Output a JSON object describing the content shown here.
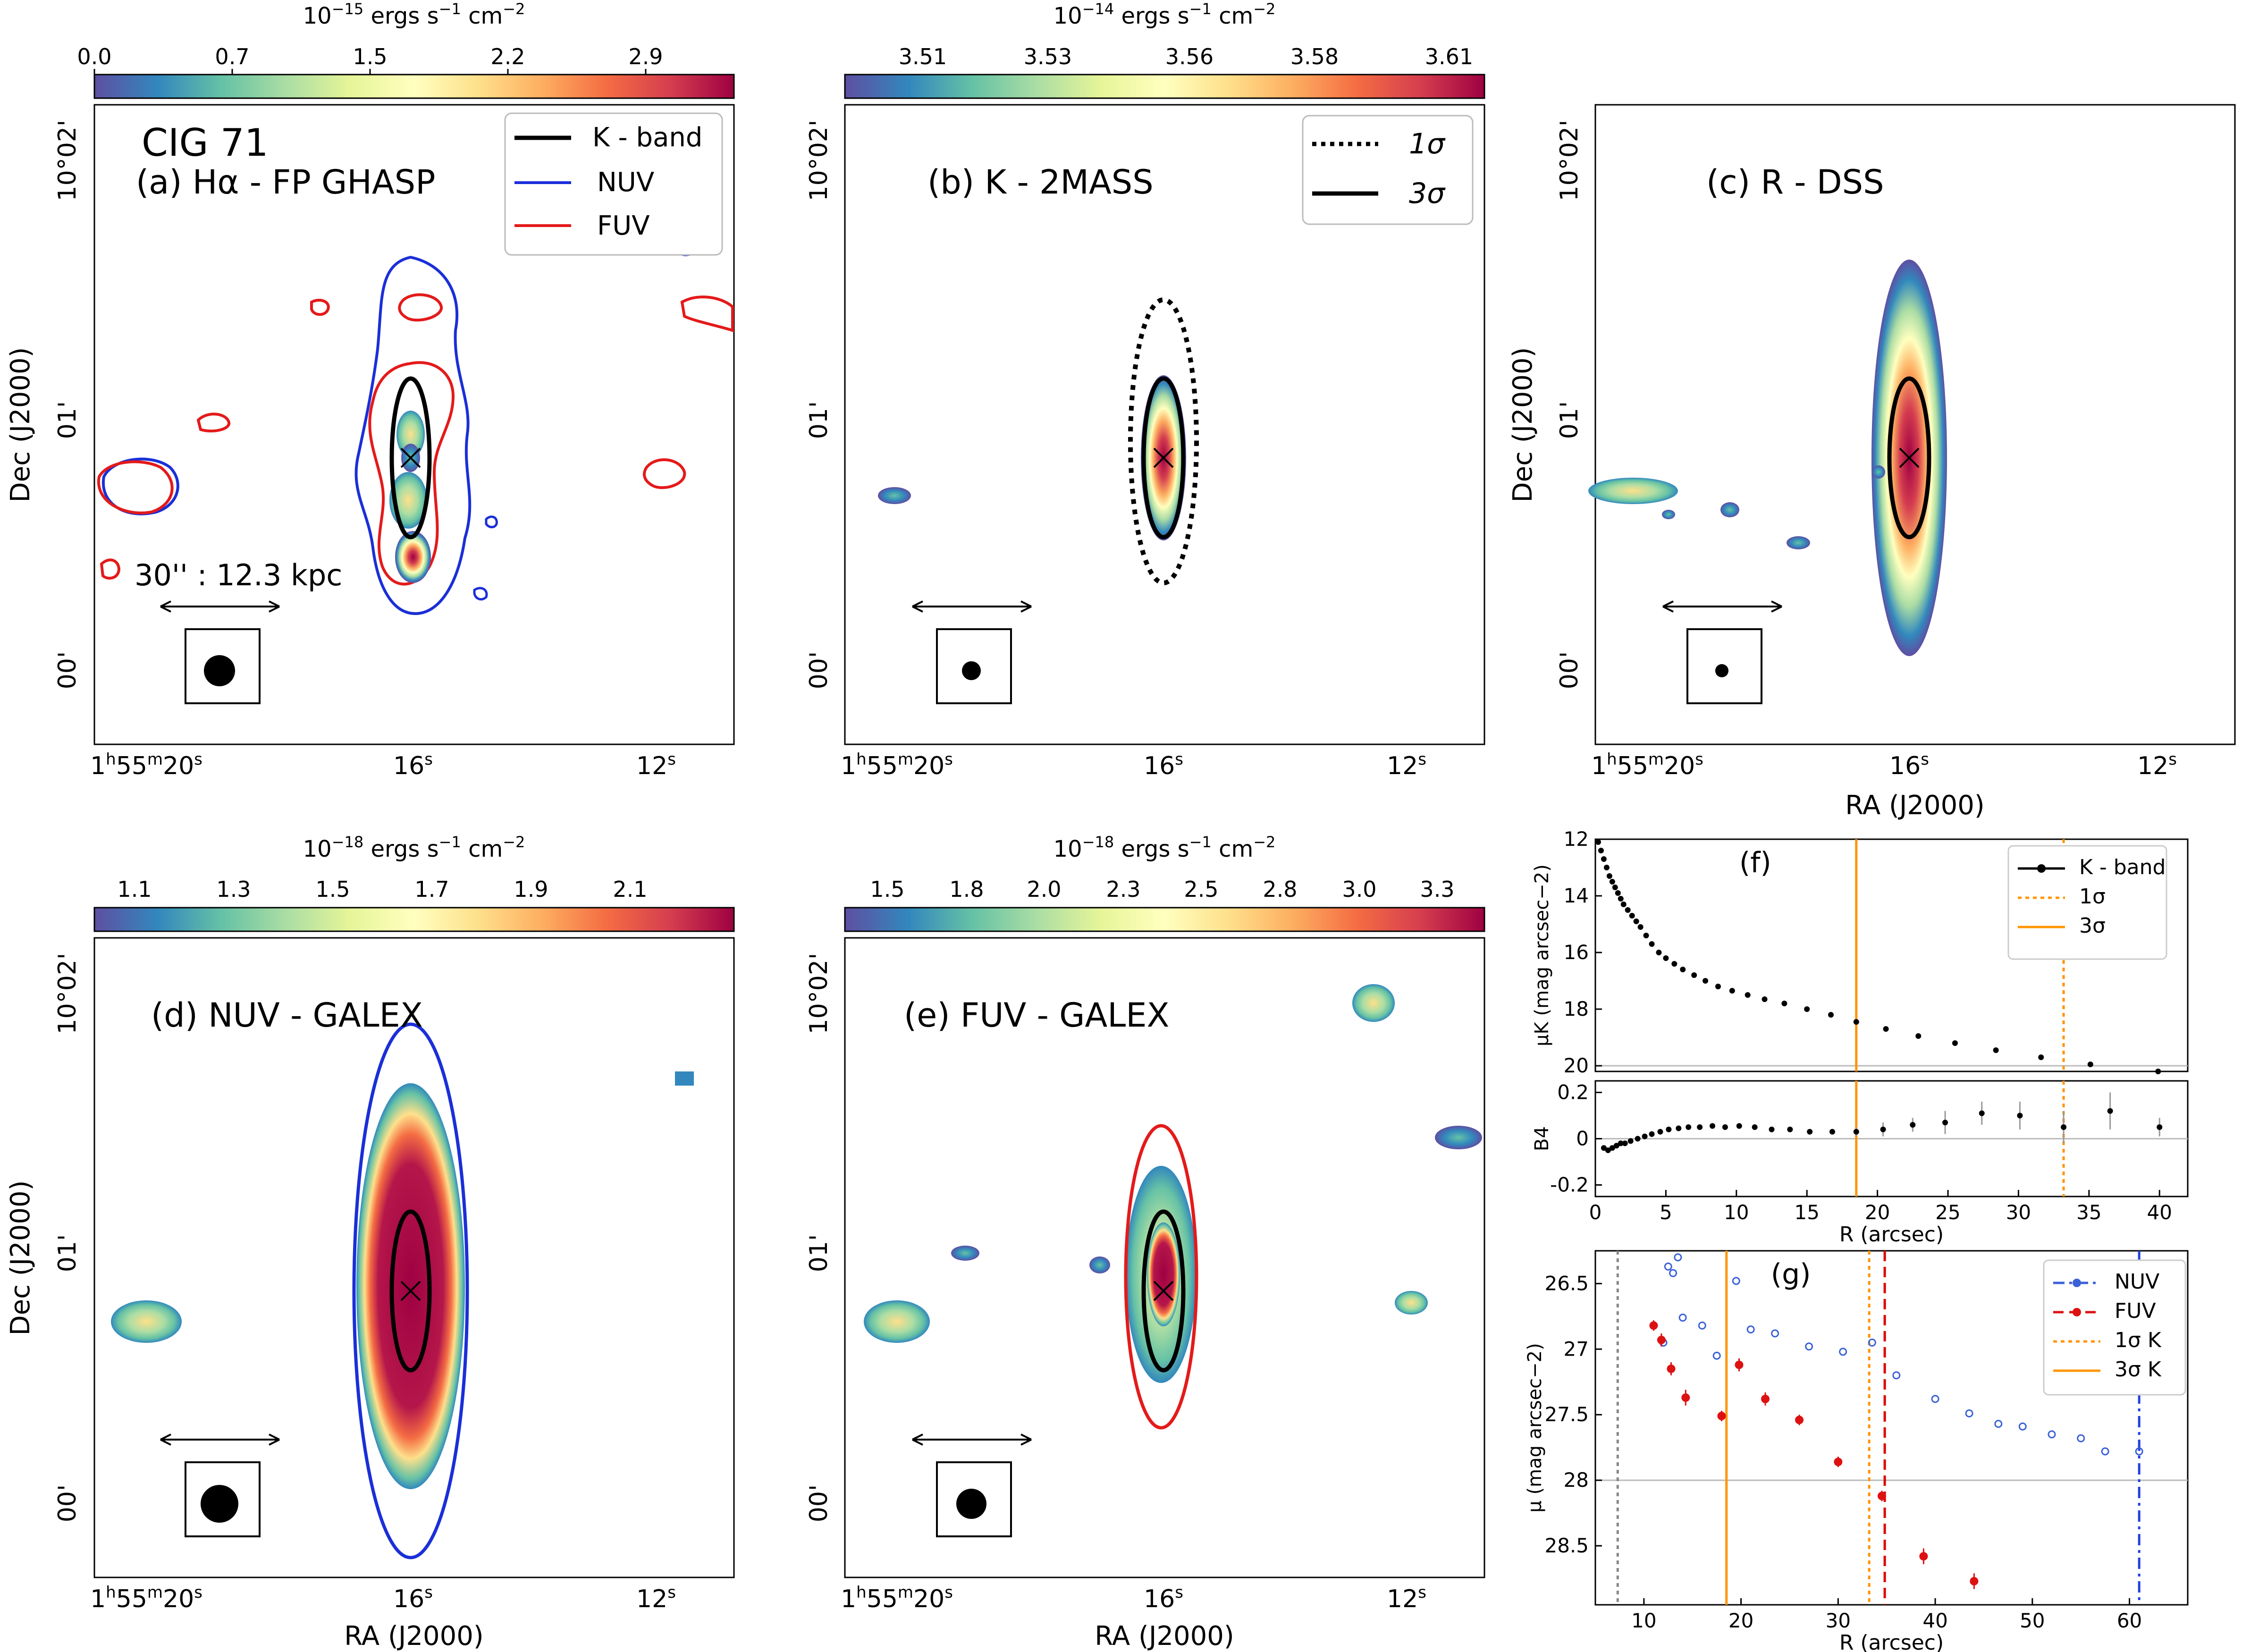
{
  "panels": {
    "a": {
      "title_line1": "CIG 71",
      "title_line2": "(a) Hα - FP GHASP",
      "scale_text": "30'' : 12.3 kpc",
      "legend": [
        "K - band",
        "NUV",
        "FUV"
      ],
      "cbar_unit": "10^{-15} ergs s^{-1} cm^{-2}",
      "cbar_ticks": [
        "0.0",
        "0.7",
        "1.5",
        "2.2",
        "2.9"
      ]
    },
    "b": {
      "title": "(b) K - 2MASS",
      "legend": [
        "1σ",
        "3σ"
      ],
      "cbar_unit": "10^{-14} ergs s^{-1} cm^{-2}",
      "cbar_ticks": [
        "3.51",
        "3.53",
        "3.56",
        "3.58",
        "3.61"
      ]
    },
    "c": {
      "title": "(c) R - DSS"
    },
    "d": {
      "title": "(d) NUV - GALEX",
      "cbar_unit": "10^{-18} ergs s^{-1} cm^{-2}",
      "cbar_ticks": [
        "1.1",
        "1.3",
        "1.5",
        "1.7",
        "1.9",
        "2.1"
      ]
    },
    "e": {
      "title": "(e) FUV - GALEX",
      "cbar_unit": "10^{-18} ergs s^{-1} cm^{-2}",
      "cbar_ticks": [
        "1.5",
        "1.8",
        "2.0",
        "2.3",
        "2.5",
        "2.8",
        "3.0",
        "3.3"
      ]
    }
  },
  "axes": {
    "ra_label": "RA (J2000)",
    "dec_label": "Dec (J2000)",
    "ra_ticks": [
      "1h55m20s",
      "16s",
      "12s"
    ],
    "dec_ticks": [
      "10°02'",
      "01'",
      "00'"
    ]
  },
  "chart_data": [
    {
      "type": "scatter",
      "title": "(f)",
      "xlabel": "",
      "ylabel": "μK (mag arcsec−2)",
      "xlim": [
        0,
        42
      ],
      "ylim": [
        20.2,
        12
      ],
      "yticks": [
        12,
        14,
        16,
        18,
        20
      ],
      "legend": {
        "entries": [
          "K - band",
          "1σ",
          "3σ"
        ],
        "placement": "top-right"
      },
      "vlines": [
        {
          "x": 18.5,
          "style": "solid",
          "color": "#ff9500",
          "label": "3σ"
        },
        {
          "x": 33.2,
          "style": "dotted",
          "color": "#ff9500",
          "label": "1σ"
        }
      ],
      "hline": 20,
      "series": [
        {
          "name": "K - band",
          "x": [
            0.2,
            0.4,
            0.6,
            0.8,
            1.0,
            1.2,
            1.4,
            1.6,
            1.8,
            2.0,
            2.3,
            2.6,
            2.9,
            3.2,
            3.6,
            4.0,
            4.5,
            5.0,
            5.6,
            6.2,
            7.0,
            7.8,
            8.7,
            9.7,
            10.8,
            12.0,
            13.4,
            15.0,
            16.7,
            18.5,
            20.6,
            22.9,
            25.5,
            28.4,
            31.6,
            35.1,
            39.9
          ],
          "y": [
            12.1,
            12.4,
            12.7,
            13.0,
            13.3,
            13.5,
            13.7,
            13.9,
            14.1,
            14.3,
            14.5,
            14.7,
            14.9,
            15.1,
            15.4,
            15.7,
            16.0,
            16.2,
            16.4,
            16.6,
            16.8,
            17.0,
            17.2,
            17.35,
            17.5,
            17.65,
            17.8,
            18.0,
            18.2,
            18.45,
            18.7,
            18.95,
            19.2,
            19.45,
            19.7,
            19.95,
            20.2
          ]
        }
      ]
    },
    {
      "type": "scatter",
      "title": "",
      "xlabel": "R (arcsec)",
      "ylabel": "B4",
      "xlim": [
        0,
        42
      ],
      "ylim": [
        -0.25,
        0.25
      ],
      "xticks": [
        0,
        5,
        10,
        15,
        20,
        25,
        30,
        35,
        40
      ],
      "yticks": [
        -0.2,
        0.0,
        0.2
      ],
      "vlines": [
        {
          "x": 18.5,
          "style": "solid",
          "color": "#ff9500"
        },
        {
          "x": 33.2,
          "style": "dotted",
          "color": "#ff9500"
        }
      ],
      "hline": 0.0,
      "series": [
        {
          "name": "B4",
          "x": [
            0.6,
            0.9,
            1.2,
            1.5,
            1.8,
            2.1,
            2.5,
            3.0,
            3.5,
            4.0,
            4.6,
            5.2,
            5.9,
            6.6,
            7.4,
            8.3,
            9.2,
            10.2,
            11.3,
            12.5,
            13.8,
            15.2,
            16.8,
            18.5,
            20.4,
            22.5,
            24.8,
            27.4,
            30.1,
            33.2,
            36.5,
            40.0
          ],
          "y": [
            -0.04,
            -0.05,
            -0.04,
            -0.03,
            -0.02,
            -0.02,
            -0.01,
            0.0,
            0.01,
            0.02,
            0.03,
            0.04,
            0.045,
            0.05,
            0.05,
            0.055,
            0.05,
            0.055,
            0.05,
            0.04,
            0.04,
            0.03,
            0.03,
            0.03,
            0.04,
            0.06,
            0.07,
            0.11,
            0.1,
            0.05,
            0.12,
            0.05
          ],
          "yerr": [
            0.01,
            0.01,
            0.01,
            0.01,
            0.01,
            0.01,
            0.01,
            0.01,
            0.01,
            0.01,
            0.01,
            0.01,
            0.01,
            0.01,
            0.01,
            0.01,
            0.01,
            0.01,
            0.01,
            0.01,
            0.01,
            0.01,
            0.01,
            0.02,
            0.03,
            0.03,
            0.05,
            0.05,
            0.06,
            0.07,
            0.08,
            0.04
          ]
        }
      ]
    },
    {
      "type": "scatter",
      "title": "(g)",
      "xlabel": "R (arcsec)",
      "ylabel": "μ (mag arcsec−2)",
      "xlim": [
        5,
        66
      ],
      "ylim": [
        28.95,
        26.25
      ],
      "xticks": [
        10,
        20,
        30,
        40,
        50,
        60
      ],
      "yticks": [
        26.5,
        27.0,
        27.5,
        28.0,
        28.5
      ],
      "legend": {
        "entries": [
          "NUV",
          "FUV",
          "1σ K",
          "3σ K"
        ],
        "placement": "top-right"
      },
      "vlines": [
        {
          "x": 7.3,
          "style": "dotted",
          "color": "#888888"
        },
        {
          "x": 18.5,
          "style": "solid",
          "color": "#ff9500",
          "label": "3σ K"
        },
        {
          "x": 33.2,
          "style": "dotted",
          "color": "#ff9500",
          "label": "1σ K"
        },
        {
          "x": 34.8,
          "style": "dashed",
          "color": "#dd0000"
        },
        {
          "x": 61.0,
          "style": "dashdot",
          "color": "#2040dd"
        }
      ],
      "hline": 28.0,
      "series": [
        {
          "name": "NUV",
          "color": "#3a60d8",
          "x": [
            12.0,
            12.5,
            13.0,
            13.5,
            14.0,
            16.0,
            17.5,
            19.5,
            21.0,
            23.5,
            27.0,
            30.5,
            33.5,
            36.0,
            40.0,
            43.5,
            46.5,
            49.0,
            52.0,
            55.0,
            57.5,
            61.0
          ],
          "y": [
            26.95,
            26.37,
            26.42,
            26.3,
            26.76,
            26.82,
            27.05,
            26.48,
            26.85,
            26.88,
            26.98,
            27.02,
            26.95,
            27.2,
            27.38,
            27.49,
            27.57,
            27.59,
            27.65,
            27.68,
            27.78,
            27.78
          ]
        },
        {
          "name": "FUV",
          "color": "#dd1111",
          "x": [
            11.0,
            11.8,
            12.8,
            14.3,
            18.0,
            19.8,
            22.5,
            26.0,
            30.0,
            34.5,
            38.8,
            44.0
          ],
          "y": [
            26.82,
            26.93,
            27.15,
            27.37,
            27.51,
            27.12,
            27.38,
            27.54,
            27.86,
            28.12,
            28.58,
            28.77
          ],
          "yerr": [
            0.04,
            0.05,
            0.05,
            0.06,
            0.04,
            0.05,
            0.05,
            0.04,
            0.04,
            0.04,
            0.06,
            0.06
          ]
        }
      ]
    }
  ]
}
